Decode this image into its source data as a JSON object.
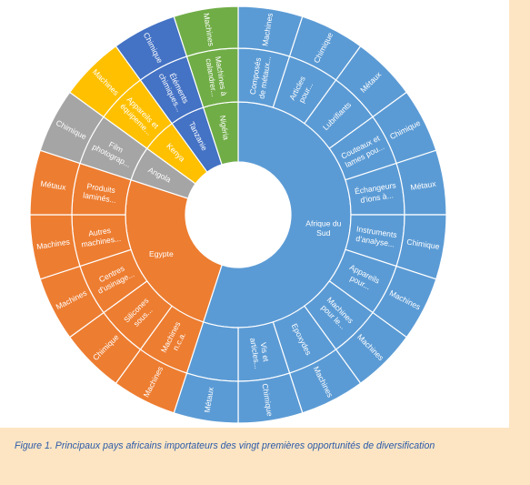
{
  "caption": "Figure 1. Principaux pays africains importateurs des vingt premières opportunités de diversification",
  "colors": {
    "Afrique du Sud": "#5b9bd5",
    "Egypte": "#ed7d31",
    "Angola": "#a5a5a5",
    "Kenya": "#ffc000",
    "Tanzanie": "#4472c4",
    "Nigéria": "#70ad47"
  },
  "chart_data": {
    "type": "sunburst",
    "title": "",
    "rings": [
      "pays",
      "produit",
      "secteur"
    ],
    "countries": [
      {
        "name": "Afrique du Sud",
        "label": "Afrique du\nSud",
        "products": [
          {
            "label": "Composés\nde métaux...",
            "sector": "Machines",
            "value": 1
          },
          {
            "label": "Articles\npour...",
            "sector": "Chimique",
            "value": 1
          },
          {
            "label": "Lubrifiants",
            "sector": "Métaux",
            "value": 1
          },
          {
            "label": "Couteaux et\nlames pou...",
            "sector": "Chimique",
            "value": 1
          },
          {
            "label": "Échangeurs\nd'ions à...",
            "sector": "Métaux",
            "value": 1
          },
          {
            "label": "Instruments\nd'analyse...",
            "sector": "Chimique",
            "value": 1
          },
          {
            "label": "Appareils\npour...",
            "sector": "Machines",
            "value": 1
          },
          {
            "label": "Machines\npour le...",
            "sector": "Machines",
            "value": 1
          },
          {
            "label": "Epoxydes",
            "sector": "Machines",
            "value": 1
          },
          {
            "label": "Vis et\narticles...",
            "sector": "Chimique",
            "value": 1
          }
        ],
        "outer_extra": {
          "sector": "Métaux",
          "value": 1
        }
      },
      {
        "name": "Egypte",
        "label": "Egypte",
        "products": [
          {
            "label": "Machines\nn.c.a.",
            "sector": "Machines",
            "value": 1
          },
          {
            "label": "Silicones\nsous...",
            "sector": "Chimique",
            "value": 1
          },
          {
            "label": "Centres\nd'usinage...",
            "sector": "Machines",
            "value": 1
          },
          {
            "label": "Autres\nmachines...",
            "sector": "Machines",
            "value": 1
          },
          {
            "label": "Produits\nlaminés...",
            "sector": "Métaux",
            "value": 1
          }
        ]
      },
      {
        "name": "Angola",
        "label": "Angola",
        "products": [
          {
            "label": "Film\nphotograp...",
            "sector": "Chimique",
            "value": 1
          }
        ]
      },
      {
        "name": "Kenya",
        "label": "Kenya",
        "products": [
          {
            "label": "Appareils et\néquipeme...",
            "sector": "Machines",
            "value": 1
          }
        ]
      },
      {
        "name": "Tanzanie",
        "label": "Tanzanie",
        "products": [
          {
            "label": "Éléments\nchimiques...",
            "sector": "Chimique",
            "value": 1
          }
        ]
      },
      {
        "name": "Nigéria",
        "label": "Nigéria",
        "products": [
          {
            "label": "Machines à\ncalandrer...",
            "sector": "Machines",
            "value": 1
          }
        ]
      }
    ]
  }
}
